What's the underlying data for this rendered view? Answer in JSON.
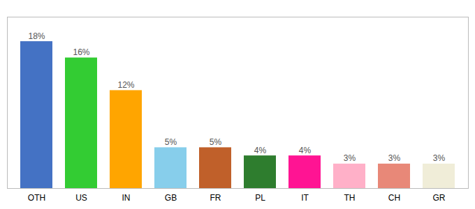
{
  "chart_data": {
    "type": "bar",
    "categories": [
      "OTH",
      "US",
      "IN",
      "GB",
      "FR",
      "PL",
      "IT",
      "TH",
      "CH",
      "GR"
    ],
    "values": [
      18,
      16,
      12,
      5,
      5,
      4,
      4,
      3,
      3,
      3
    ],
    "value_labels": [
      "18%",
      "16%",
      "12%",
      "5%",
      "5%",
      "4%",
      "4%",
      "3%",
      "3%",
      "3%"
    ],
    "colors": [
      "#4472C4",
      "#33CC33",
      "#FFA500",
      "#87CEEB",
      "#C0602A",
      "#2E7D2E",
      "#FF1493",
      "#FFB0C8",
      "#E88878",
      "#F0EDD8"
    ],
    "ylim": [
      0,
      21
    ],
    "data_labels": true,
    "tick_labels": "x"
  }
}
